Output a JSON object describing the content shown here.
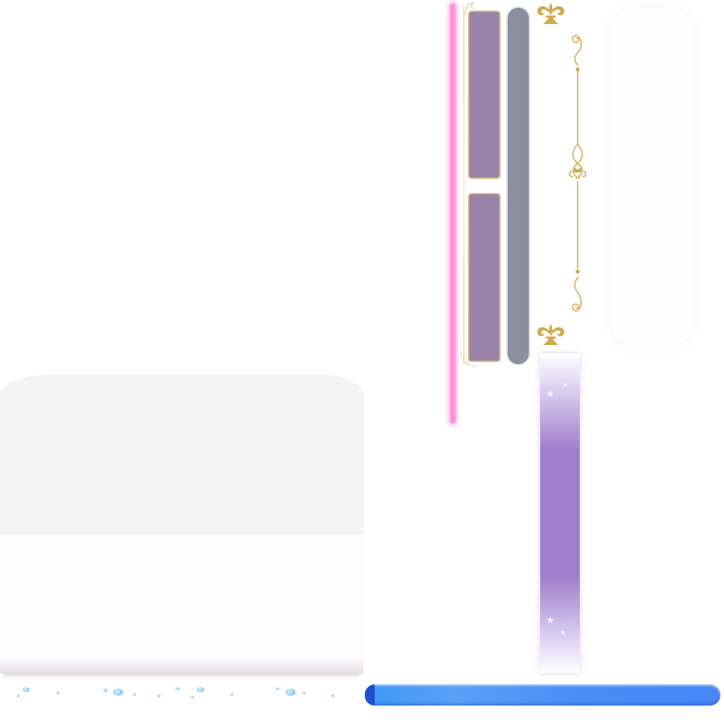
{
  "assets": {
    "pink_line": {
      "icon": "neon-line",
      "color": "#ff8fd8"
    },
    "purple_slots": [
      {
        "name": "slot-1",
        "color": "#9a84a8",
        "border": "#d6b87a"
      },
      {
        "name": "slot-2",
        "color": "#9a84a8",
        "border": "#d6b87a"
      }
    ],
    "grey_track": {
      "color": "#8f8e9e",
      "border": "#dbe7f6"
    },
    "ornaments": {
      "fleur_top": "fleur-de-lis-icon",
      "fleur_bottom": "fleur-de-lis-icon",
      "scroll_vertical": "scroll-divider-icon",
      "color": "#d4a94a"
    },
    "purple_column": {
      "color": "#a07fcb",
      "stars": [
        "star-icon",
        "star-icon",
        "star-icon",
        "star-icon"
      ]
    },
    "card": {
      "top_color": "#f4f4f4",
      "body_color": "#fdfdfd"
    },
    "bubbles": {
      "color": "#5fb8f0"
    },
    "blue_bar": {
      "color": "#4a86f6",
      "tip_color": "#1f4fd1",
      "progress": 1.0
    }
  }
}
